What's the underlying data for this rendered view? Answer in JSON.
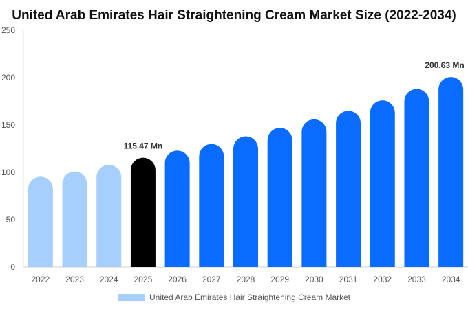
{
  "chart_data": {
    "type": "bar",
    "title": "United Arab Emirates Hair Straightening Cream Market Size (2022-2034)",
    "xlabel": "",
    "ylabel": "",
    "ylim": [
      0,
      250
    ],
    "yticks": [
      0,
      50,
      100,
      150,
      200,
      250
    ],
    "grid": false,
    "legend_position": "bottom",
    "categories": [
      "2022",
      "2023",
      "2024",
      "2025",
      "2026",
      "2027",
      "2028",
      "2029",
      "2030",
      "2031",
      "2032",
      "2033",
      "2034"
    ],
    "series": [
      {
        "name": "United Arab Emirates Hair Straightening Cream Market",
        "values": [
          95.5,
          101,
          108,
          115.47,
          123,
          130,
          138,
          147,
          156,
          165,
          176,
          188,
          200.63
        ]
      }
    ],
    "bar_colors": [
      "#a6cffd",
      "#a6cffd",
      "#a6cffd",
      "#000000",
      "#0a6cff",
      "#0a6cff",
      "#0a6cff",
      "#0a6cff",
      "#0a6cff",
      "#0a6cff",
      "#0a6cff",
      "#0a6cff",
      "#0a6cff"
    ],
    "legend_color": "#a6cffd",
    "annotations": [
      {
        "category": "2025",
        "text": "115.47 Mn"
      },
      {
        "category": "2034",
        "text": "200.63 Mn"
      }
    ]
  }
}
